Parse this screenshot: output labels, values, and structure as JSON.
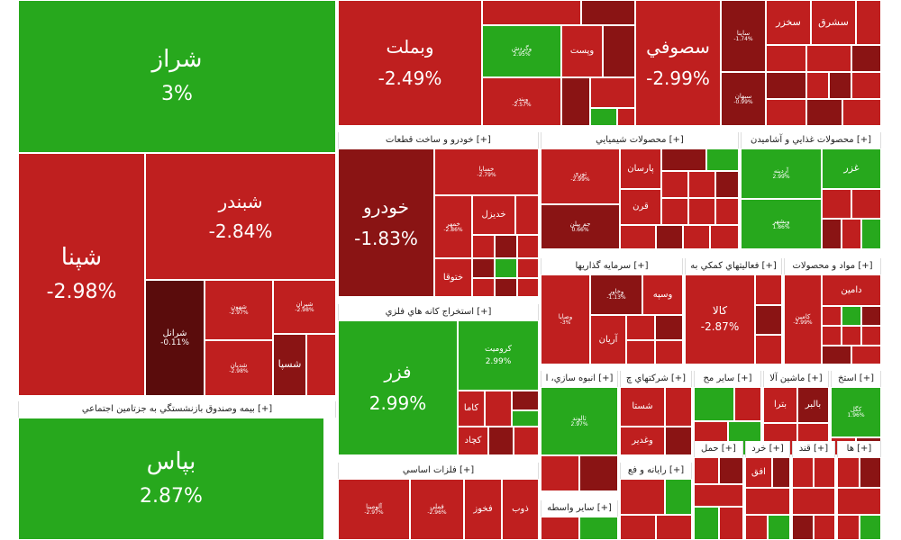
{
  "colors": {
    "green": "#27a81d",
    "red": "#bf1f1f",
    "dark_red": "#8a1414",
    "very_dark_red": "#5a0c0c"
  },
  "headers": {
    "khodro": "خودرو و ساخت قطعات [+]",
    "shimiyai": "محصولات شيميايي [+]",
    "ghazaei": "محصولات غذايي و آشاميدن [+]",
    "estekhraj": "استخراج کانه هاي فلزي [+]",
    "sarmaye": "سرمايه گذاريها [+]",
    "faaliat": "فعاليتهاي کمکي به [+]",
    "mavad": "مواد و محصولات [+]",
    "bime": "بيمه وصندوق بازنشستگي به جزتامين اجتماعي [+]",
    "felezat": "فلزات اساسي [+]",
    "anbooh": "انبوه سازي، ا [+]",
    "sherkat": "شرکتهاي چ [+]",
    "sayer_moh": "ساير مح [+]",
    "mashin": "ماشين آلا [+]",
    "estekhraj2": "استخ [+]",
    "rayaneh": "رايانه و فع [+]",
    "haml": "حمل [+]",
    "khord": "خرد [+]",
    "ghand": "قند [+]",
    "ha": "ها [+]",
    "sayer_vaseteh": "ساير واسطه [+]"
  },
  "stocks": {
    "shiraz": {
      "name": "شراز",
      "pct": "3%"
    },
    "vabemellat": {
      "name": "وبملت",
      "pct": "-2.49%"
    },
    "sesufi": {
      "name": "سصوفي",
      "pct": "-2.99%"
    },
    "shepna": {
      "name": "شپنا",
      "pct": "-2.98%"
    },
    "shebandar": {
      "name": "شبندر",
      "pct": "-2.84%"
    },
    "sherail": {
      "name": "شرانل",
      "pct": "-0.11%"
    },
    "shebhan": {
      "name": "شهون",
      "pct": "-2.97%"
    },
    "shiran": {
      "name": "شيران",
      "pct": "-2.98%"
    },
    "shedian": {
      "name": "شديان",
      "pct": "-2.98%"
    },
    "shesapa": {
      "name": "شسپا"
    },
    "khodro": {
      "name": "خودرو",
      "pct": "-1.83%"
    },
    "khasapa": {
      "name": "خساپا",
      "pct": "-2.79%"
    },
    "khodizel": {
      "name": "خديزل"
    },
    "khetooqa": {
      "name": "ختوقا"
    },
    "khemehr": {
      "name": "خمهر",
      "pct": "-2.86%"
    },
    "fezar": {
      "name": "فزر",
      "pct": "2.99%"
    },
    "koromit": {
      "name": "كروميت",
      "pct": "2.99%"
    },
    "kama": {
      "name": "كاما"
    },
    "kechad": {
      "name": "كچاد"
    },
    "bepas": {
      "name": "بپاس",
      "pct": "2.87%"
    },
    "vagardesh": {
      "name": "وگردش",
      "pct": "2.95%"
    },
    "vapast": {
      "name": "وپست"
    },
    "vabandar": {
      "name": "وبندر",
      "pct": "-2.57%"
    },
    "tori": {
      "name": "توري",
      "pct": "-2.99%"
    },
    "parsan": {
      "name": "پارسان"
    },
    "qaran": {
      "name": "قرن"
    },
    "jampilan": {
      "name": "جم پيلن",
      "pct": "0.66%"
    },
    "ghazar": {
      "name": "غزر"
    },
    "ardineh": {
      "name": "آردينه",
      "pct": "2.99%"
    },
    "vabeshahr": {
      "name": "وبشهر",
      "pct": "1.86%"
    },
    "vasepeh": {
      "name": "وسپه"
    },
    "vamaya": {
      "name": "وصايا",
      "pct": "-3%"
    },
    "arian": {
      "name": "آريان"
    },
    "vakhavar": {
      "name": "وخاور",
      "pct": "-1.13%"
    },
    "kala": {
      "name": "كالا",
      "pct": "-2.87%"
    },
    "damin": {
      "name": "دامين"
    },
    "kamin": {
      "name": "كامين",
      "pct": "-2.99%"
    },
    "talvand": {
      "name": "ثالوند",
      "pct": "2.97%"
    },
    "shasta": {
      "name": "شستا"
    },
    "vaghadir": {
      "name": "وغدير"
    },
    "balber": {
      "name": "بالبر"
    },
    "betra": {
      "name": "بترا"
    },
    "kegol": {
      "name": "كگل",
      "pct": "1.96%"
    },
    "alumina": {
      "name": "آلومينا",
      "pct": "-2.97%"
    },
    "fakhoz": {
      "name": "فخوز"
    },
    "zob": {
      "name": "ذوب"
    },
    "fameli": {
      "name": "فملي",
      "pct": "-2.96%"
    },
    "afegh": {
      "name": "افق"
    },
    "sekhzar": {
      "name": "سخزر"
    },
    "sesharg": {
      "name": "سشرق"
    },
    "semaiel": {
      "name": "ساينا",
      "pct": "-1.74%"
    },
    "sebehan": {
      "name": "سبهان",
      "pct": "-0.99%"
    }
  }
}
